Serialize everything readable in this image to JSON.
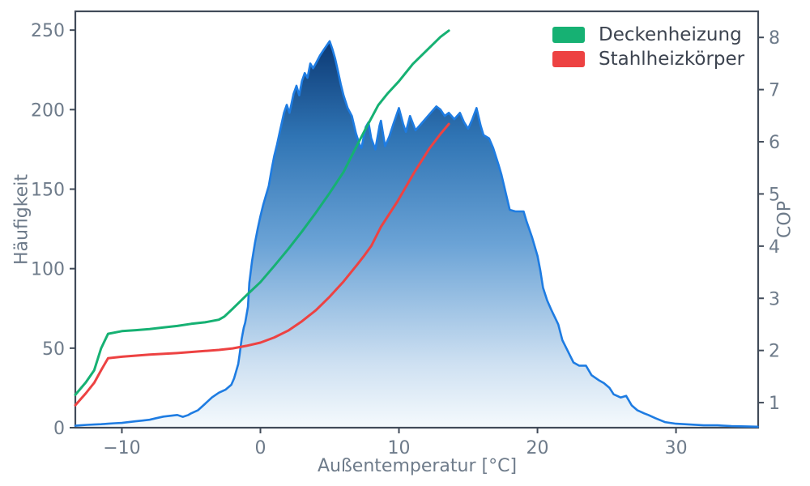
{
  "figure": {
    "background": "#ffffff"
  },
  "axes": {
    "spine_color": "#414b59",
    "spine_width": 2.2,
    "tick_color": "#414b59",
    "tick_label_color": "#6e7b8a",
    "tick_font_size": 22,
    "x": {
      "label": "Außentemperatur [°C]",
      "ticks": [
        -10,
        0,
        10,
        20,
        30
      ],
      "tick_labels": [
        "−10",
        "0",
        "10",
        "20",
        "30"
      ]
    },
    "y_left": {
      "label": "Häufigkeit",
      "ticks": [
        0,
        50,
        100,
        150,
        200,
        250
      ],
      "tick_labels": [
        "0",
        "50",
        "100",
        "150",
        "200",
        "250"
      ]
    },
    "y_right": {
      "label": "COP",
      "ticks": [
        1,
        2,
        3,
        4,
        5,
        6,
        7,
        8
      ],
      "tick_labels": [
        "1",
        "2",
        "3",
        "4",
        "5",
        "6",
        "7",
        "8"
      ]
    }
  },
  "legend": {
    "items": [
      {
        "label": "Deckenheizung",
        "color": "#16b173"
      },
      {
        "label": "Stahlheizkörper",
        "color": "#ed4242"
      }
    ]
  },
  "chart_data": {
    "type": "area",
    "title": "",
    "xlabel": "Außentemperatur [°C]",
    "ylabel_left": "Häufigkeit",
    "ylabel_right": "COP",
    "xlim": [
      -13.36,
      35.93
    ],
    "ylim_left": [
      0,
      261.8
    ],
    "ylim_right": [
      0.52,
      8.5
    ],
    "grid": false,
    "legend_position": "upper right",
    "series": [
      {
        "name": "Häufigkeit der Außentemperatur",
        "type": "area",
        "axis": "left",
        "color": "#1e7ce2",
        "line_width": 2.6,
        "gradient_stops": [
          [
            0,
            "#062f66"
          ],
          [
            0.08,
            "#0d3b76"
          ],
          [
            0.3,
            "#2f74b4"
          ],
          [
            0.56,
            "#6ba3d6"
          ],
          [
            0.85,
            "#cfe1f2"
          ],
          [
            1,
            "#f5fafd"
          ]
        ],
        "points": [
          [
            -13.36,
            1.2
          ],
          [
            -13,
            1.5
          ],
          [
            -12.5,
            1.8
          ],
          [
            -12,
            2
          ],
          [
            -11.5,
            2.2
          ],
          [
            -11,
            2.5
          ],
          [
            -10.5,
            2.8
          ],
          [
            -10,
            3
          ],
          [
            -9.5,
            3.5
          ],
          [
            -9,
            4
          ],
          [
            -8.5,
            4.5
          ],
          [
            -8,
            5
          ],
          [
            -7.5,
            6
          ],
          [
            -7,
            7
          ],
          [
            -6.5,
            7.5
          ],
          [
            -6,
            8
          ],
          [
            -5.6,
            6.8
          ],
          [
            -5.2,
            8
          ],
          [
            -5,
            9
          ],
          [
            -4.5,
            11
          ],
          [
            -4,
            15
          ],
          [
            -3.5,
            19
          ],
          [
            -3,
            22
          ],
          [
            -2.5,
            24
          ],
          [
            -2.1,
            27
          ],
          [
            -1.9,
            31
          ],
          [
            -1.7,
            37
          ],
          [
            -1.6,
            40
          ],
          [
            -1.5,
            46
          ],
          [
            -1.35,
            56
          ],
          [
            -1.2,
            63
          ],
          [
            -1.1,
            66
          ],
          [
            -0.9,
            76
          ],
          [
            -0.8,
            91
          ],
          [
            -0.6,
            105
          ],
          [
            -0.4,
            116
          ],
          [
            -0.2,
            125
          ],
          [
            0,
            133
          ],
          [
            0.2,
            140
          ],
          [
            0.4,
            146
          ],
          [
            0.6,
            152
          ],
          [
            0.8,
            162
          ],
          [
            1,
            171
          ],
          [
            1.2,
            178
          ],
          [
            1.4,
            186
          ],
          [
            1.7,
            198
          ],
          [
            1.9,
            203
          ],
          [
            2.1,
            198
          ],
          [
            2.4,
            210
          ],
          [
            2.6,
            215
          ],
          [
            2.8,
            209
          ],
          [
            3,
            218
          ],
          [
            3.2,
            223
          ],
          [
            3.4,
            220
          ],
          [
            3.6,
            229
          ],
          [
            3.8,
            226
          ],
          [
            4,
            229
          ],
          [
            4.3,
            234
          ],
          [
            4.6,
            238
          ],
          [
            5,
            243
          ],
          [
            5.2,
            238
          ],
          [
            5.4,
            232
          ],
          [
            5.6,
            224
          ],
          [
            5.8,
            216
          ],
          [
            6,
            209
          ],
          [
            6.3,
            201
          ],
          [
            6.6,
            196
          ],
          [
            6.9,
            185
          ],
          [
            7.2,
            177
          ],
          [
            7.3,
            176
          ],
          [
            7.6,
            189
          ],
          [
            7.8,
            192
          ],
          [
            8,
            182
          ],
          [
            8.3,
            175
          ],
          [
            8.6,
            190
          ],
          [
            8.7,
            193
          ],
          [
            9,
            177
          ],
          [
            9.3,
            183
          ],
          [
            9.6,
            191
          ],
          [
            10,
            201
          ],
          [
            10.3,
            191
          ],
          [
            10.5,
            186
          ],
          [
            10.8,
            196
          ],
          [
            11.2,
            187
          ],
          [
            11.6,
            191
          ],
          [
            12.2,
            197
          ],
          [
            12.7,
            202
          ],
          [
            13,
            200
          ],
          [
            13.3,
            196
          ],
          [
            13.6,
            198
          ],
          [
            14,
            194
          ],
          [
            14.4,
            198
          ],
          [
            14.7,
            192
          ],
          [
            15,
            188
          ],
          [
            15.3,
            194
          ],
          [
            15.6,
            201
          ],
          [
            15.9,
            190
          ],
          [
            16.1,
            184
          ],
          [
            16.5,
            182
          ],
          [
            16.8,
            176
          ],
          [
            17.2,
            165
          ],
          [
            17.4,
            159
          ],
          [
            17.7,
            148
          ],
          [
            18,
            137
          ],
          [
            18.4,
            136
          ],
          [
            19,
            136
          ],
          [
            19.2,
            130
          ],
          [
            19.6,
            120
          ],
          [
            20,
            108
          ],
          [
            20.2,
            99
          ],
          [
            20.4,
            88
          ],
          [
            20.7,
            80
          ],
          [
            21,
            74
          ],
          [
            21.5,
            65
          ],
          [
            21.8,
            55
          ],
          [
            22.2,
            48
          ],
          [
            22.6,
            41
          ],
          [
            23,
            39
          ],
          [
            23.5,
            39
          ],
          [
            23.9,
            33
          ],
          [
            24.4,
            30
          ],
          [
            24.8,
            28
          ],
          [
            25.2,
            25
          ],
          [
            25.5,
            21
          ],
          [
            26,
            19
          ],
          [
            26.4,
            20
          ],
          [
            26.8,
            14
          ],
          [
            27.2,
            11
          ],
          [
            27.7,
            9
          ],
          [
            28,
            8
          ],
          [
            28.5,
            6
          ],
          [
            29.2,
            3.5
          ],
          [
            30,
            2.5
          ],
          [
            31,
            2
          ],
          [
            32,
            1.5
          ],
          [
            33,
            1.5
          ],
          [
            34,
            1
          ],
          [
            35,
            0.8
          ],
          [
            35.9,
            0.6
          ]
        ]
      },
      {
        "name": "Deckenheizung",
        "type": "line",
        "axis": "right",
        "color": "#16b173",
        "line_width": 3,
        "points": [
          [
            -13.36,
            1.15
          ],
          [
            -12.6,
            1.39
          ],
          [
            -12,
            1.62
          ],
          [
            -11.5,
            2.04
          ],
          [
            -11,
            2.32
          ],
          [
            -10,
            2.37
          ],
          [
            -9,
            2.39
          ],
          [
            -8,
            2.41
          ],
          [
            -7,
            2.44
          ],
          [
            -6,
            2.47
          ],
          [
            -5,
            2.51
          ],
          [
            -4,
            2.54
          ],
          [
            -3,
            2.59
          ],
          [
            -2.6,
            2.65
          ],
          [
            -2,
            2.8
          ],
          [
            -1,
            3.06
          ],
          [
            0,
            3.31
          ],
          [
            1,
            3.62
          ],
          [
            2,
            3.94
          ],
          [
            3,
            4.28
          ],
          [
            4,
            4.64
          ],
          [
            5,
            5.02
          ],
          [
            6,
            5.42
          ],
          [
            6.7,
            5.79
          ],
          [
            7.5,
            6.2
          ],
          [
            8.5,
            6.7
          ],
          [
            9.2,
            6.93
          ],
          [
            10,
            7.16
          ],
          [
            11,
            7.49
          ],
          [
            12,
            7.75
          ],
          [
            13,
            8.01
          ],
          [
            13.6,
            8.13
          ]
        ]
      },
      {
        "name": "Stahlheizkörper",
        "type": "line",
        "axis": "right",
        "color": "#ed4242",
        "line_width": 3,
        "points": [
          [
            -13.36,
            0.95
          ],
          [
            -12.6,
            1.18
          ],
          [
            -12,
            1.38
          ],
          [
            -11.5,
            1.62
          ],
          [
            -11,
            1.85
          ],
          [
            -10,
            1.88
          ],
          [
            -8,
            1.92
          ],
          [
            -6,
            1.95
          ],
          [
            -4,
            1.99
          ],
          [
            -3,
            2.01
          ],
          [
            -2,
            2.04
          ],
          [
            -1,
            2.09
          ],
          [
            0,
            2.15
          ],
          [
            1,
            2.25
          ],
          [
            2,
            2.38
          ],
          [
            3,
            2.56
          ],
          [
            4,
            2.77
          ],
          [
            5,
            3.03
          ],
          [
            6,
            3.32
          ],
          [
            7,
            3.65
          ],
          [
            7.5,
            3.82
          ],
          [
            8,
            4.0
          ],
          [
            8.7,
            4.37
          ],
          [
            9.9,
            4.86
          ],
          [
            11.1,
            5.41
          ],
          [
            12.2,
            5.87
          ],
          [
            13,
            6.15
          ],
          [
            13.6,
            6.34
          ]
        ]
      }
    ]
  }
}
